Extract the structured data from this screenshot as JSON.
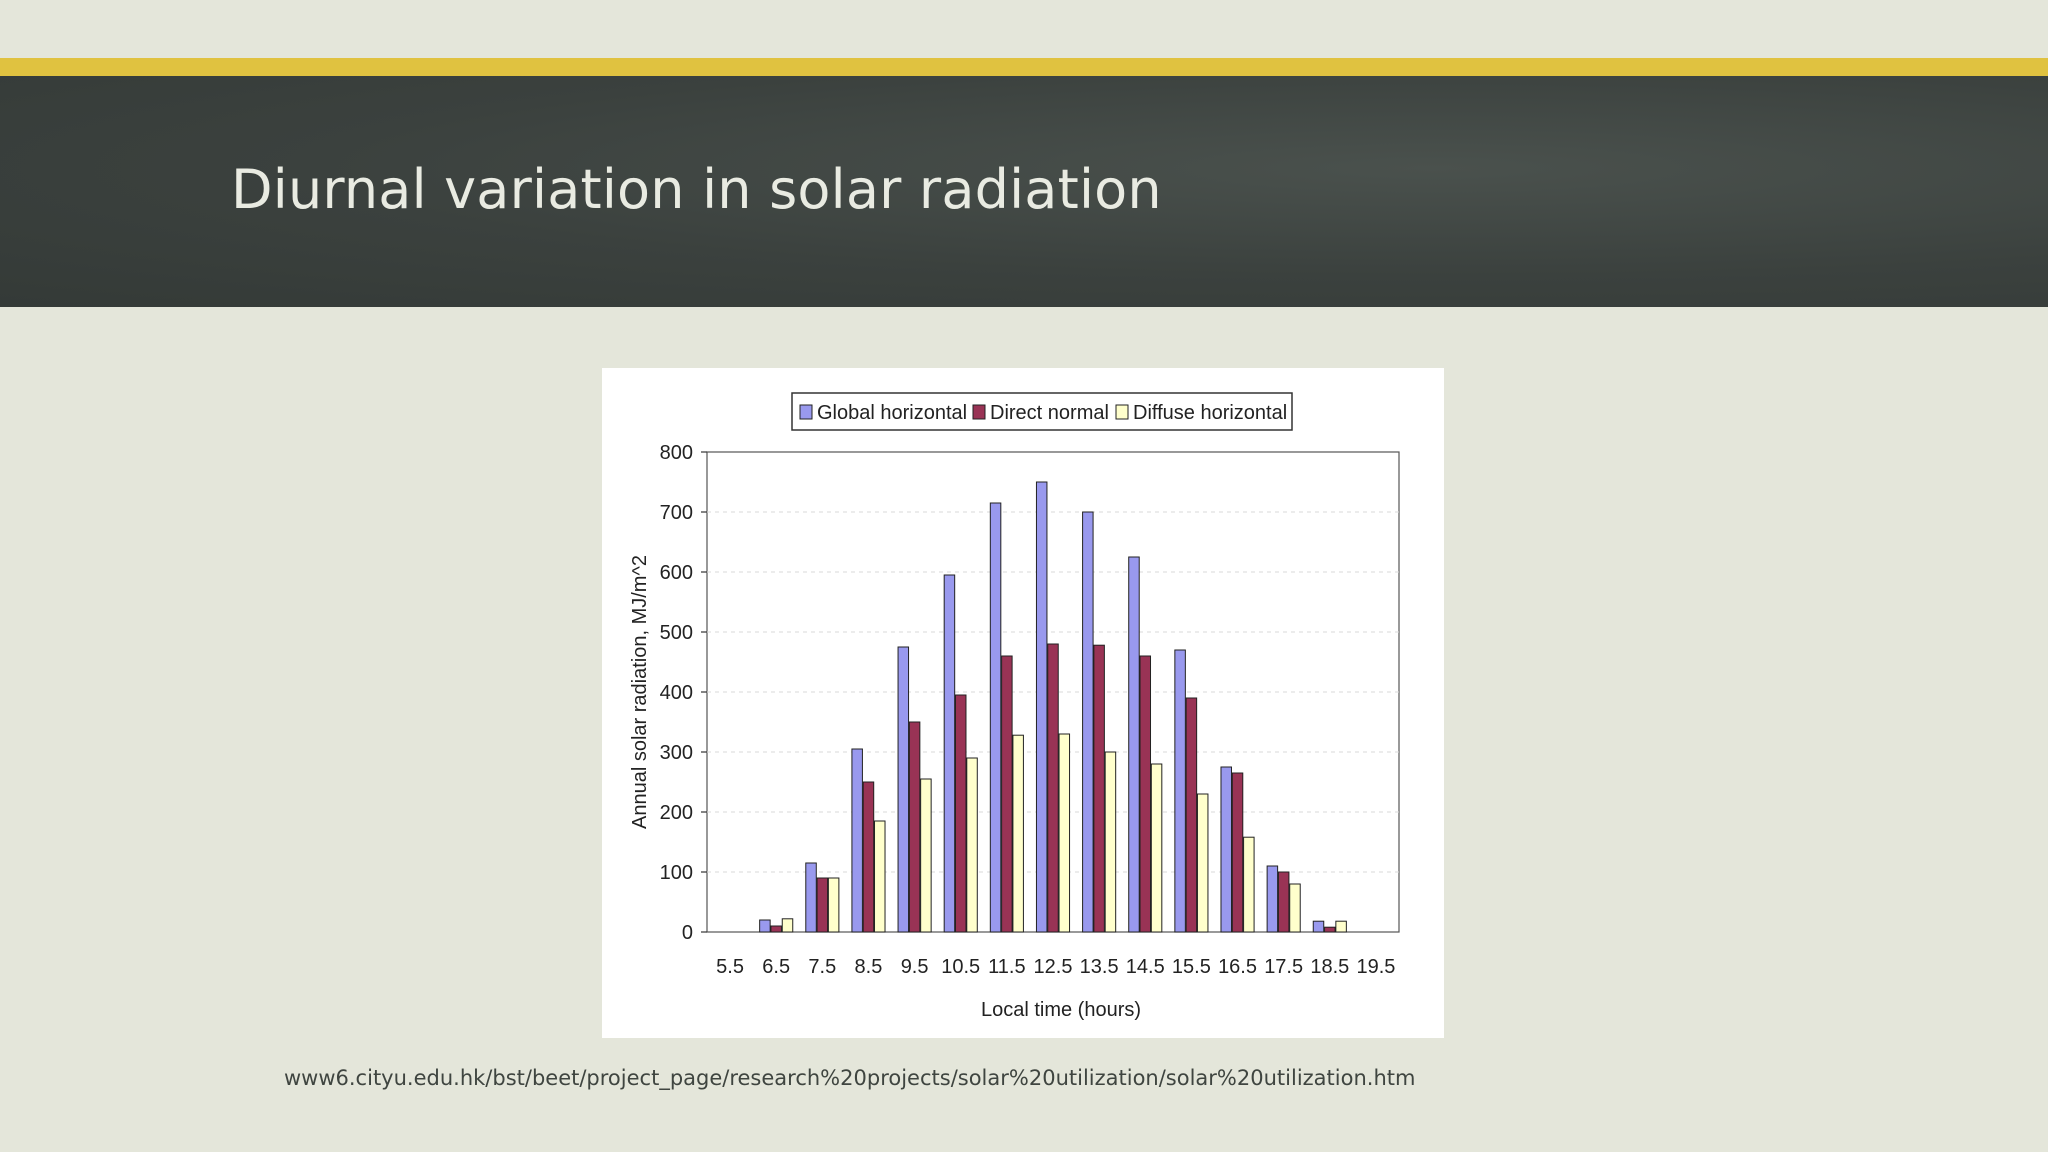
{
  "slide": {
    "title": "Diurnal variation in solar radiation",
    "source_url": "www6.cityu.edu.hk/bst/beet/project_page/research%20projects/solar%20utilization/solar%20utilization.htm",
    "colors": {
      "accent": "#e0c240",
      "band": "#3b413e",
      "background": "#e4e6da"
    }
  },
  "chart_data": {
    "type": "bar",
    "title": "",
    "xlabel": "Local time (hours)",
    "ylabel": "Annual solar radiation, MJ/m^2",
    "categories": [
      "5.5",
      "6.5",
      "7.5",
      "8.5",
      "9.5",
      "10.5",
      "11.5",
      "12.5",
      "13.5",
      "14.5",
      "15.5",
      "16.5",
      "17.5",
      "18.5",
      "19.5"
    ],
    "ylim": [
      0,
      800
    ],
    "yticks": [
      "0",
      "100",
      "200",
      "300",
      "400",
      "500",
      "600",
      "700",
      "800"
    ],
    "grid": "horizontal dashed",
    "legend_position": "top-center",
    "series": [
      {
        "name": "Global horizontal",
        "color": "#9999ee",
        "values": [
          0,
          20,
          115,
          305,
          475,
          595,
          715,
          750,
          700,
          625,
          470,
          275,
          110,
          18,
          0
        ]
      },
      {
        "name": "Direct normal",
        "color": "#993355",
        "values": [
          0,
          10,
          90,
          250,
          350,
          395,
          460,
          480,
          478,
          460,
          390,
          265,
          100,
          8,
          0
        ]
      },
      {
        "name": "Diffuse horizontal",
        "color": "#ffffcc",
        "values": [
          0,
          22,
          90,
          185,
          255,
          290,
          328,
          330,
          300,
          280,
          230,
          158,
          80,
          18,
          0
        ]
      }
    ]
  }
}
